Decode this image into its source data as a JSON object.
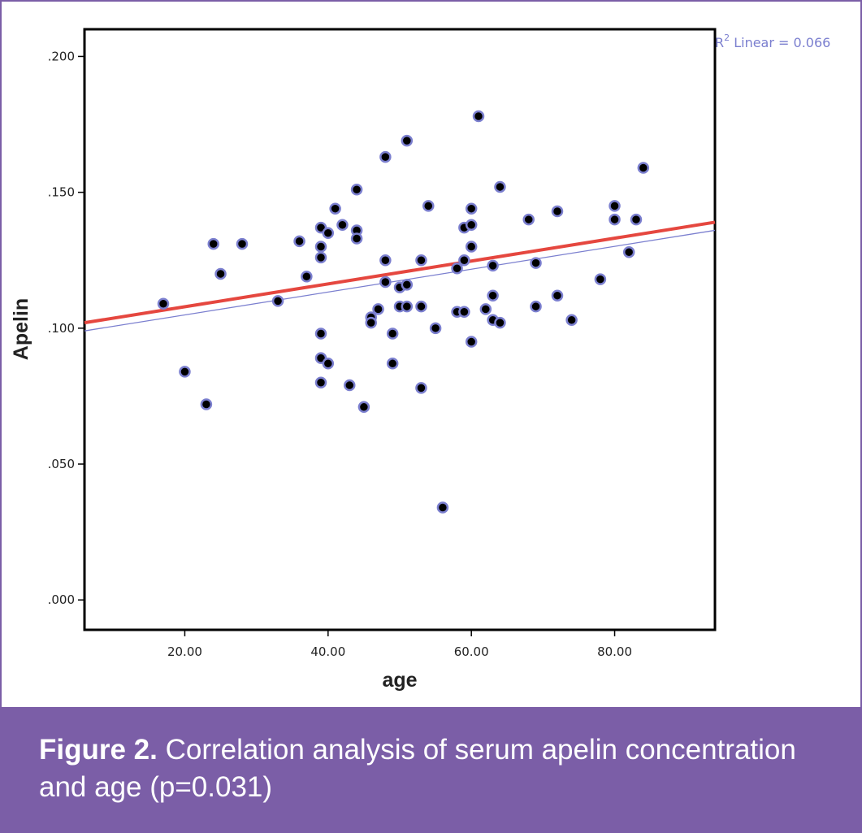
{
  "caption": {
    "label": "Figure 2.",
    "text": "Correlation analysis of serum apelin concentration and age (p=0.031)"
  },
  "colors": {
    "frame": "#7b5ea7",
    "caption_band": "#7b5ea7",
    "marker_edge": "#7b7fcf",
    "marker_fill": "#000000",
    "fit_line_red": "#e5473f",
    "fit_line_blue": "#7b7fcf"
  },
  "chart_data": {
    "type": "scatter",
    "title": "",
    "xlabel": "age",
    "ylabel": "Apelin",
    "xlim": [
      6,
      94
    ],
    "ylim": [
      -0.011,
      0.21
    ],
    "xticks": [
      20,
      40,
      60,
      80
    ],
    "xtick_labels": [
      "20.00",
      "40.00",
      "60.00",
      "80.00"
    ],
    "yticks": [
      0,
      0.05,
      0.1,
      0.15,
      0.2
    ],
    "ytick_labels": [
      ".000",
      ".050",
      ".100",
      ".150",
      ".200"
    ],
    "grid": false,
    "annotation": {
      "text_prefix": "R",
      "superscript": "2",
      "text_suffix": " Linear = 0.066"
    },
    "fit_lines": [
      {
        "color": "red",
        "x": [
          6,
          94
        ],
        "y": [
          0.102,
          0.139
        ]
      },
      {
        "color": "blue",
        "x": [
          6,
          94
        ],
        "y": [
          0.099,
          0.136
        ]
      }
    ],
    "series": [
      {
        "points": [
          [
            17,
            0.109
          ],
          [
            20,
            0.084
          ],
          [
            23,
            0.072
          ],
          [
            24,
            0.131
          ],
          [
            25,
            0.12
          ],
          [
            28,
            0.131
          ],
          [
            33,
            0.11
          ],
          [
            36,
            0.132
          ],
          [
            37,
            0.119
          ],
          [
            39,
            0.137
          ],
          [
            39,
            0.13
          ],
          [
            39,
            0.126
          ],
          [
            40,
            0.135
          ],
          [
            39,
            0.098
          ],
          [
            39,
            0.089
          ],
          [
            40,
            0.087
          ],
          [
            39,
            0.08
          ],
          [
            41,
            0.144
          ],
          [
            42,
            0.138
          ],
          [
            43,
            0.079
          ],
          [
            44,
            0.151
          ],
          [
            44,
            0.136
          ],
          [
            44,
            0.133
          ],
          [
            45,
            0.071
          ],
          [
            46,
            0.104
          ],
          [
            46,
            0.102
          ],
          [
            47,
            0.107
          ],
          [
            48,
            0.163
          ],
          [
            48,
            0.125
          ],
          [
            48,
            0.117
          ],
          [
            49,
            0.098
          ],
          [
            49,
            0.087
          ],
          [
            50,
            0.115
          ],
          [
            50,
            0.108
          ],
          [
            51,
            0.169
          ],
          [
            51,
            0.116
          ],
          [
            51,
            0.108
          ],
          [
            53,
            0.125
          ],
          [
            53,
            0.108
          ],
          [
            53,
            0.078
          ],
          [
            54,
            0.145
          ],
          [
            55,
            0.1
          ],
          [
            56,
            0.034
          ],
          [
            58,
            0.122
          ],
          [
            58,
            0.106
          ],
          [
            59,
            0.137
          ],
          [
            59,
            0.125
          ],
          [
            59,
            0.106
          ],
          [
            60,
            0.144
          ],
          [
            60,
            0.138
          ],
          [
            60,
            0.13
          ],
          [
            60,
            0.095
          ],
          [
            61,
            0.178
          ],
          [
            62,
            0.107
          ],
          [
            63,
            0.123
          ],
          [
            63,
            0.112
          ],
          [
            63,
            0.103
          ],
          [
            64,
            0.152
          ],
          [
            64,
            0.102
          ],
          [
            68,
            0.14
          ],
          [
            69,
            0.124
          ],
          [
            69,
            0.108
          ],
          [
            72,
            0.143
          ],
          [
            72,
            0.112
          ],
          [
            74,
            0.103
          ],
          [
            78,
            0.118
          ],
          [
            80,
            0.145
          ],
          [
            80,
            0.14
          ],
          [
            82,
            0.128
          ],
          [
            83,
            0.14
          ],
          [
            84,
            0.159
          ]
        ]
      }
    ]
  }
}
